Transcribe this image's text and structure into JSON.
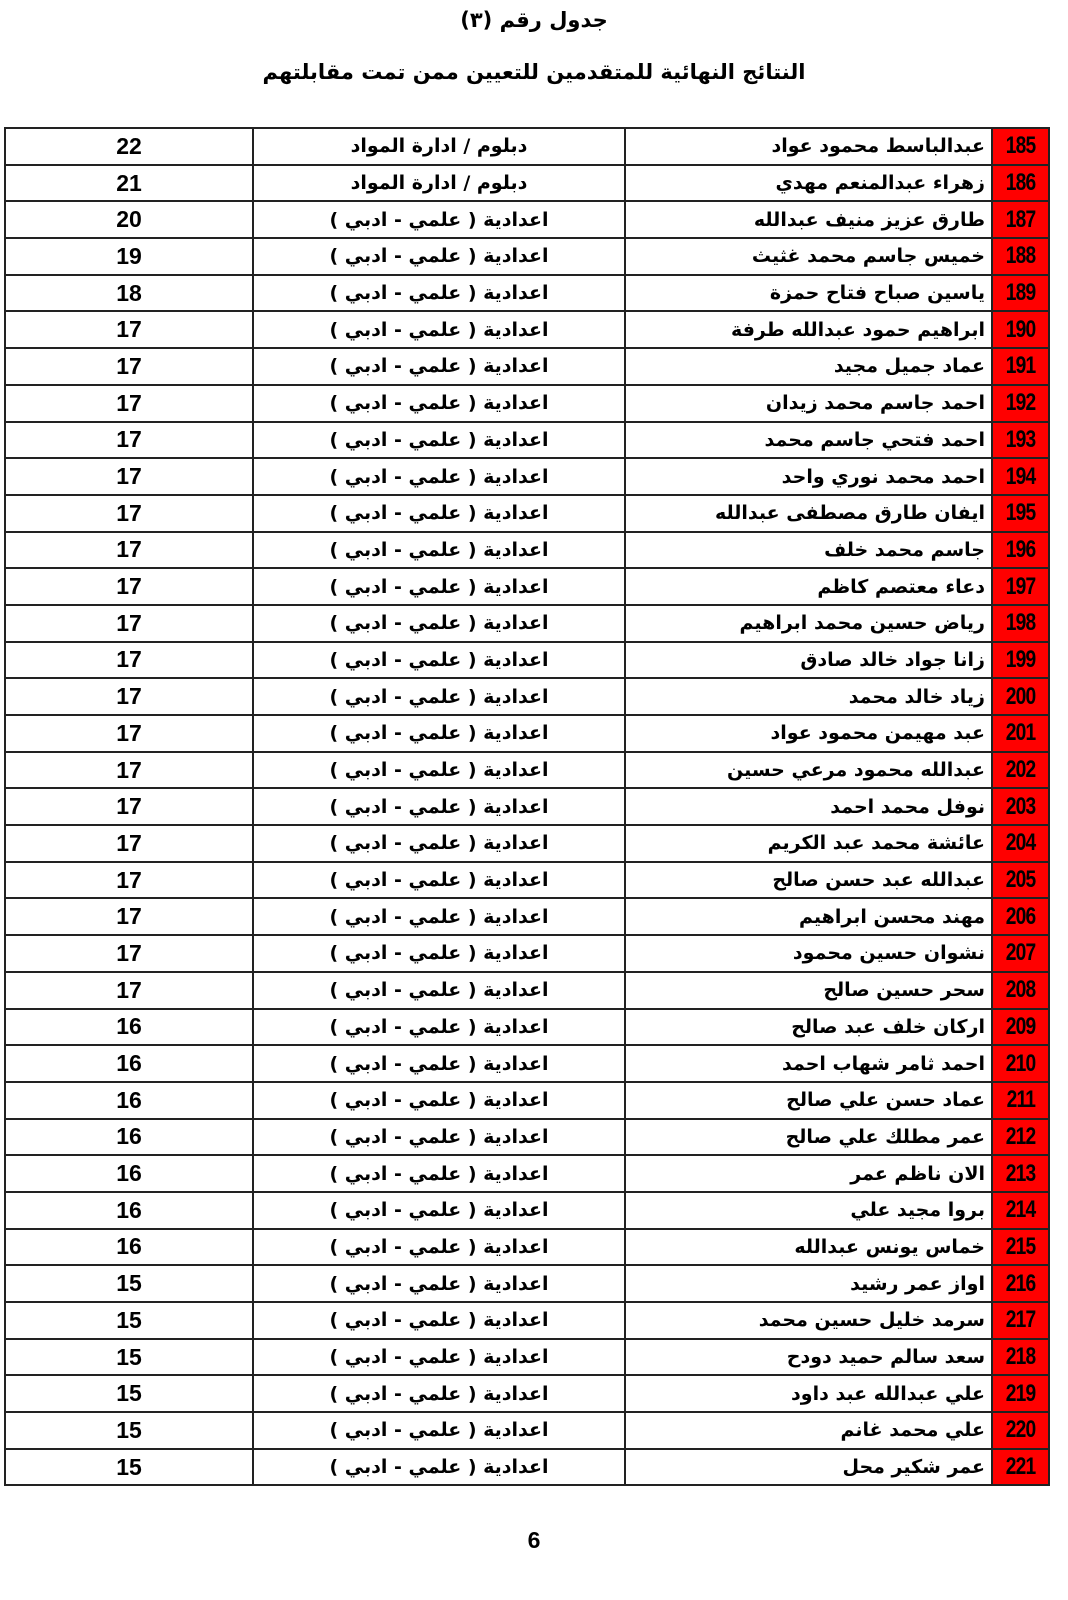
{
  "header": {
    "title": "جدول رقم (٣)",
    "subtitle": "النتائج النهائية للمتقدمين للتعيين ممن تمت مقابلتهم"
  },
  "colors": {
    "number_cell": "#ff0000"
  },
  "rows": [
    {
      "num": "185",
      "name": "عبدالباسط محمود عواد",
      "qualification": "دبلوم / ادارة المواد",
      "score": "22"
    },
    {
      "num": "186",
      "name": "زهراء عبدالمنعم مهدي",
      "qualification": "دبلوم / ادارة المواد",
      "score": "21"
    },
    {
      "num": "187",
      "name": "طارق عزيز منيف عبدالله",
      "qualification": "اعدادية ( علمي - ادبي )",
      "score": "20"
    },
    {
      "num": "188",
      "name": "خميس جاسم محمد غثيث",
      "qualification": "اعدادية ( علمي - ادبي )",
      "score": "19"
    },
    {
      "num": "189",
      "name": "ياسين صباح فتاح حمزة",
      "qualification": "اعدادية ( علمي - ادبي )",
      "score": "18"
    },
    {
      "num": "190",
      "name": "ابراهيم حمود عبدالله طرفة",
      "qualification": "اعدادية ( علمي - ادبي )",
      "score": "17"
    },
    {
      "num": "191",
      "name": "عماد جميل مجيد",
      "qualification": "اعدادية ( علمي - ادبي )",
      "score": "17"
    },
    {
      "num": "192",
      "name": "احمد جاسم محمد زيدان",
      "qualification": "اعدادية ( علمي - ادبي )",
      "score": "17"
    },
    {
      "num": "193",
      "name": "احمد فتحي جاسم محمد",
      "qualification": "اعدادية ( علمي - ادبي )",
      "score": "17"
    },
    {
      "num": "194",
      "name": "احمد محمد نوري واحد",
      "qualification": "اعدادية ( علمي - ادبي )",
      "score": "17"
    },
    {
      "num": "195",
      "name": "ايفان طارق مصطفى عبدالله",
      "qualification": "اعدادية ( علمي - ادبي )",
      "score": "17"
    },
    {
      "num": "196",
      "name": "جاسم محمد خلف",
      "qualification": "اعدادية ( علمي - ادبي )",
      "score": "17"
    },
    {
      "num": "197",
      "name": "دعاء معتصم كاظم",
      "qualification": "اعدادية ( علمي - ادبي )",
      "score": "17"
    },
    {
      "num": "198",
      "name": "رياض حسين محمد ابراهيم",
      "qualification": "اعدادية ( علمي - ادبي )",
      "score": "17"
    },
    {
      "num": "199",
      "name": "زانا جواد خالد صادق",
      "qualification": "اعدادية ( علمي - ادبي )",
      "score": "17"
    },
    {
      "num": "200",
      "name": "زياد خالد محمد",
      "qualification": "اعدادية ( علمي - ادبي )",
      "score": "17"
    },
    {
      "num": "201",
      "name": "عبد مهيمن محمود عواد",
      "qualification": "اعدادية ( علمي - ادبي )",
      "score": "17"
    },
    {
      "num": "202",
      "name": "عبدالله محمود مرعي حسين",
      "qualification": "اعدادية ( علمي - ادبي )",
      "score": "17"
    },
    {
      "num": "203",
      "name": "نوفل محمد احمد",
      "qualification": "اعدادية ( علمي - ادبي )",
      "score": "17"
    },
    {
      "num": "204",
      "name": "عائشة محمد عبد الكريم",
      "qualification": "اعدادية ( علمي - ادبي )",
      "score": "17"
    },
    {
      "num": "205",
      "name": "عبدالله عبد حسن صالح",
      "qualification": "اعدادية ( علمي - ادبي )",
      "score": "17"
    },
    {
      "num": "206",
      "name": "مهند محسن ابراهيم",
      "qualification": "اعدادية ( علمي - ادبي )",
      "score": "17"
    },
    {
      "num": "207",
      "name": "نشوان حسين محمود",
      "qualification": "اعدادية ( علمي - ادبي )",
      "score": "17"
    },
    {
      "num": "208",
      "name": "سحر حسين صالح",
      "qualification": "اعدادية ( علمي - ادبي )",
      "score": "17"
    },
    {
      "num": "209",
      "name": "اركان خلف عبد صالح",
      "qualification": "اعدادية ( علمي - ادبي )",
      "score": "16"
    },
    {
      "num": "210",
      "name": "احمد ثامر شهاب احمد",
      "qualification": "اعدادية ( علمي - ادبي )",
      "score": "16"
    },
    {
      "num": "211",
      "name": "عماد حسن علي صالح",
      "qualification": "اعدادية ( علمي - ادبي )",
      "score": "16"
    },
    {
      "num": "212",
      "name": "عمر مطلك علي صالح",
      "qualification": "اعدادية ( علمي - ادبي )",
      "score": "16"
    },
    {
      "num": "213",
      "name": "الان ناظم عمر",
      "qualification": "اعدادية ( علمي - ادبي )",
      "score": "16"
    },
    {
      "num": "214",
      "name": "بروا مجيد علي",
      "qualification": "اعدادية ( علمي - ادبي )",
      "score": "16"
    },
    {
      "num": "215",
      "name": "خماس يونس عبدالله",
      "qualification": "اعدادية ( علمي - ادبي )",
      "score": "16"
    },
    {
      "num": "216",
      "name": "اواز عمر رشيد",
      "qualification": "اعدادية ( علمي - ادبي )",
      "score": "15"
    },
    {
      "num": "217",
      "name": "سرمد خليل حسين محمد",
      "qualification": "اعدادية ( علمي - ادبي )",
      "score": "15"
    },
    {
      "num": "218",
      "name": "سعد سالم حميد دودح",
      "qualification": "اعدادية ( علمي - ادبي )",
      "score": "15"
    },
    {
      "num": "219",
      "name": "علي عبدالله عبد داود",
      "qualification": "اعدادية ( علمي - ادبي )",
      "score": "15"
    },
    {
      "num": "220",
      "name": "علي محمد غانم",
      "qualification": "اعدادية ( علمي - ادبي )",
      "score": "15"
    },
    {
      "num": "221",
      "name": "عمر شكير محل",
      "qualification": "اعدادية ( علمي - ادبي )",
      "score": "15"
    }
  ],
  "footer": {
    "page_number": "6"
  }
}
